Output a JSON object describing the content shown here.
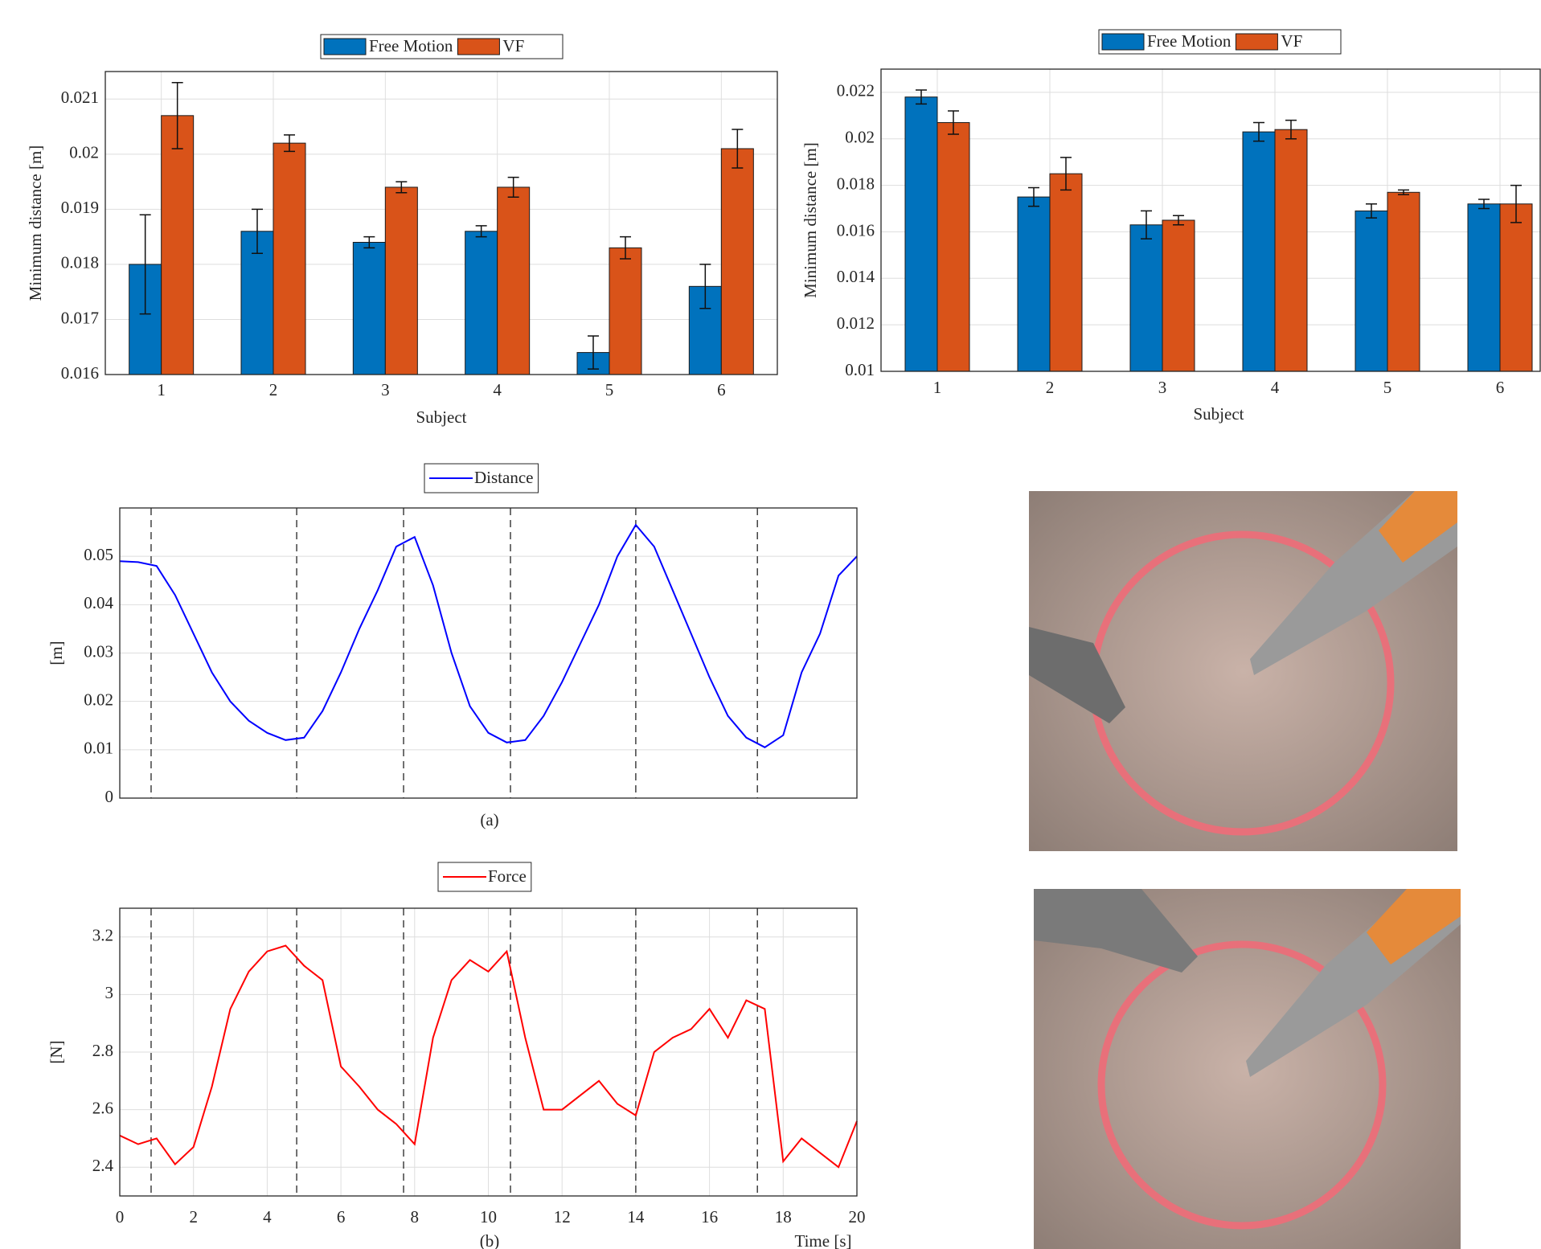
{
  "chart_data": [
    {
      "type": "bar",
      "ylabel": "Minimum distance [m]",
      "xlabel": "Subject",
      "categories": [
        "1",
        "2",
        "3",
        "4",
        "5",
        "6"
      ],
      "series": [
        {
          "name": "Free Motion",
          "color": "#0072bd",
          "values": [
            0.018,
            0.0186,
            0.0184,
            0.0186,
            0.0164,
            0.0176
          ],
          "errors": [
            0.0009,
            0.0004,
            0.0001,
            0.0001,
            0.0003,
            0.0004
          ]
        },
        {
          "name": "VF",
          "color": "#d95319",
          "values": [
            0.0207,
            0.0202,
            0.0194,
            0.0194,
            0.0183,
            0.0201
          ],
          "errors": [
            0.0006,
            0.00015,
            0.0001,
            0.00018,
            0.0002,
            0.00035
          ]
        }
      ],
      "ylim": [
        0.016,
        0.0215
      ],
      "yticks": [
        0.016,
        0.017,
        0.018,
        0.019,
        0.02,
        0.021
      ],
      "grid": true
    },
    {
      "type": "bar",
      "ylabel": "Minimum distance [m]",
      "xlabel": "Subject",
      "categories": [
        "1",
        "2",
        "3",
        "4",
        "5",
        "6"
      ],
      "series": [
        {
          "name": "Free Motion",
          "color": "#0072bd",
          "values": [
            0.0218,
            0.0175,
            0.0163,
            0.0203,
            0.0169,
            0.0172
          ],
          "errors": [
            0.0003,
            0.0004,
            0.0006,
            0.0004,
            0.0003,
            0.0002
          ]
        },
        {
          "name": "VF",
          "color": "#d95319",
          "values": [
            0.0207,
            0.0185,
            0.0165,
            0.0204,
            0.0177,
            0.0172
          ],
          "errors": [
            0.0005,
            0.0007,
            0.0002,
            0.0004,
            0.0001,
            0.0008
          ]
        }
      ],
      "ylim": [
        0.01,
        0.023
      ],
      "yticks": [
        0.01,
        0.012,
        0.014,
        0.016,
        0.018,
        0.02,
        0.022
      ],
      "grid": true
    },
    {
      "type": "line",
      "ylabel": "[m]",
      "annotation": "(a)",
      "x": [
        0,
        0.5,
        1,
        1.5,
        2,
        2.5,
        3,
        3.5,
        4,
        4.5,
        5,
        5.5,
        6,
        6.5,
        7,
        7.5,
        8,
        8.5,
        9,
        9.5,
        10,
        10.5,
        11,
        11.5,
        12,
        12.5,
        13,
        13.5,
        14,
        14.5,
        15,
        15.5,
        16,
        16.5,
        17,
        17.5,
        18,
        18.5,
        19,
        19.5,
        20
      ],
      "series": [
        {
          "name": "Distance",
          "color": "#0000ff",
          "values": [
            0.049,
            0.0488,
            0.048,
            0.042,
            0.034,
            0.026,
            0.02,
            0.016,
            0.0135,
            0.012,
            0.0125,
            0.018,
            0.026,
            0.035,
            0.043,
            0.052,
            0.054,
            0.044,
            0.03,
            0.019,
            0.0135,
            0.0115,
            0.012,
            0.017,
            0.024,
            0.032,
            0.04,
            0.05,
            0.0565,
            0.052,
            0.043,
            0.034,
            0.025,
            0.017,
            0.0125,
            0.0105,
            0.013,
            0.026,
            0.034,
            0.046,
            0.05
          ]
        }
      ],
      "vlines": [
        0.85,
        4.8,
        7.7,
        10.6,
        14.0,
        17.3
      ],
      "xlim": [
        0,
        20
      ],
      "ylim": [
        0,
        0.06
      ],
      "yticks": [
        0,
        0.01,
        0.02,
        0.03,
        0.04,
        0.05
      ],
      "grid": true
    },
    {
      "type": "line",
      "ylabel": "[N]",
      "xlabel": "Time [s]",
      "annotation": "(b)",
      "x": [
        0,
        0.5,
        1,
        1.5,
        2,
        2.5,
        3,
        3.5,
        4,
        4.5,
        5,
        5.5,
        6,
        6.5,
        7,
        7.5,
        8,
        8.5,
        9,
        9.5,
        10,
        10.5,
        11,
        11.5,
        12,
        12.5,
        13,
        13.5,
        14,
        14.5,
        15,
        15.5,
        16,
        16.5,
        17,
        17.5,
        18,
        18.5,
        19,
        19.5,
        20
      ],
      "series": [
        {
          "name": "Force",
          "color": "#ff0000",
          "values": [
            2.51,
            2.48,
            2.5,
            2.41,
            2.47,
            2.68,
            2.95,
            3.08,
            3.15,
            3.17,
            3.1,
            3.05,
            2.75,
            2.68,
            2.6,
            2.55,
            2.48,
            2.85,
            3.05,
            3.12,
            3.08,
            3.15,
            2.85,
            2.6,
            2.6,
            2.65,
            2.7,
            2.62,
            2.58,
            2.8,
            2.85,
            2.88,
            2.95,
            2.85,
            2.98,
            2.95,
            2.42,
            2.5,
            2.45,
            2.4,
            2.56
          ]
        }
      ],
      "vlines": [
        0.85,
        4.8,
        7.7,
        10.6,
        14.0,
        17.3
      ],
      "xlim": [
        0,
        20
      ],
      "xticks": [
        0,
        2,
        4,
        6,
        8,
        10,
        12,
        14,
        16,
        18,
        20
      ],
      "ylim": [
        2.3,
        3.3
      ],
      "yticks": [
        2.4,
        2.6,
        2.8,
        3,
        3.2
      ],
      "grid": true
    }
  ]
}
